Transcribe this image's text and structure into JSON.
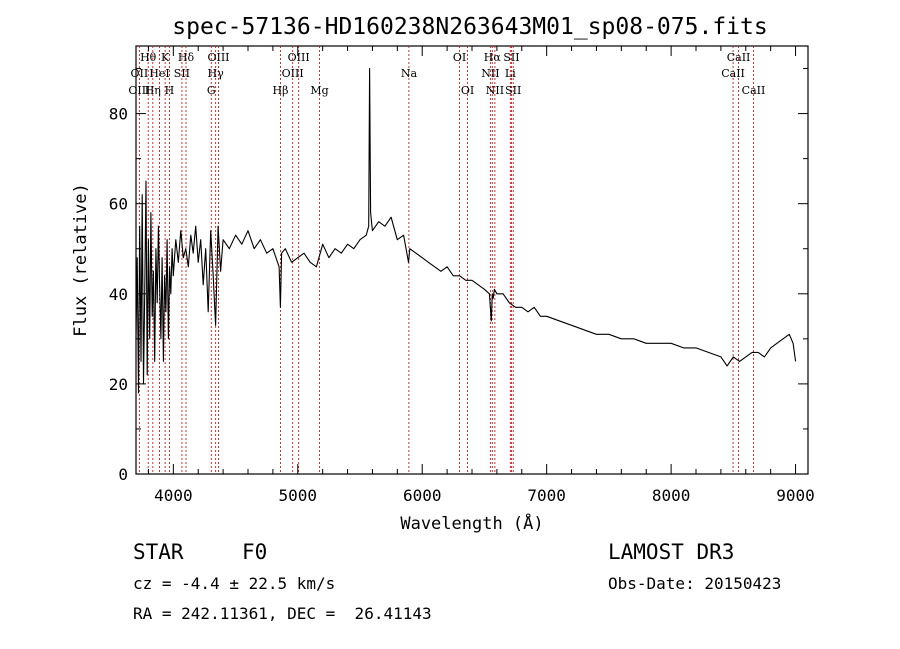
{
  "chart_data": {
    "type": "line",
    "title": "spec-57136-HD160238N263643M01_sp08-075.fits",
    "xlabel": "Wavelength (Å)",
    "ylabel": "Flux (relative)",
    "xlim": [
      3700,
      9100
    ],
    "ylim": [
      0,
      95
    ],
    "xticks": [
      4000,
      5000,
      6000,
      7000,
      8000,
      9000
    ],
    "yticks": [
      0,
      20,
      40,
      60,
      80
    ],
    "series": [
      {
        "name": "spectrum",
        "x": [
          3700,
          3710,
          3720,
          3730,
          3740,
          3750,
          3760,
          3770,
          3780,
          3790,
          3800,
          3810,
          3820,
          3830,
          3840,
          3850,
          3860,
          3870,
          3880,
          3890,
          3900,
          3910,
          3920,
          3930,
          3940,
          3950,
          3960,
          3970,
          3980,
          3990,
          4000,
          4020,
          4040,
          4060,
          4080,
          4100,
          4120,
          4140,
          4160,
          4180,
          4200,
          4220,
          4240,
          4260,
          4280,
          4300,
          4320,
          4340,
          4360,
          4380,
          4400,
          4450,
          4500,
          4550,
          4600,
          4650,
          4700,
          4750,
          4800,
          4850,
          4860,
          4870,
          4900,
          4950,
          5000,
          5050,
          5100,
          5150,
          5200,
          5250,
          5300,
          5350,
          5400,
          5450,
          5500,
          5550,
          5570,
          5577,
          5585,
          5600,
          5650,
          5700,
          5750,
          5800,
          5850,
          5890,
          5900,
          5950,
          6000,
          6050,
          6100,
          6150,
          6200,
          6250,
          6300,
          6350,
          6400,
          6450,
          6500,
          6540,
          6555,
          6563,
          6570,
          6580,
          6600,
          6650,
          6700,
          6750,
          6800,
          6850,
          6900,
          6950,
          7000,
          7100,
          7200,
          7300,
          7400,
          7500,
          7600,
          7700,
          7800,
          7900,
          8000,
          8100,
          8200,
          8300,
          8400,
          8450,
          8500,
          8550,
          8600,
          8650,
          8700,
          8750,
          8800,
          8850,
          8900,
          8950,
          8980,
          9000
        ],
        "values": [
          30,
          48,
          18,
          55,
          25,
          62,
          20,
          40,
          65,
          22,
          52,
          30,
          58,
          35,
          45,
          25,
          50,
          38,
          55,
          42,
          30,
          48,
          25,
          44,
          36,
          52,
          30,
          46,
          40,
          50,
          44,
          52,
          47,
          54,
          48,
          50,
          46,
          53,
          49,
          55,
          47,
          52,
          42,
          50,
          36,
          54,
          44,
          33,
          55,
          45,
          52,
          50,
          53,
          51,
          54,
          50,
          52,
          49,
          50,
          46,
          37,
          49,
          50,
          47,
          48,
          49,
          47,
          46,
          51,
          48,
          50,
          49,
          51,
          50,
          52,
          53,
          55,
          90,
          58,
          54,
          56,
          55,
          57,
          52,
          53,
          47,
          50,
          49,
          48,
          47,
          46,
          45,
          46,
          44,
          44,
          43,
          43,
          42,
          41,
          40,
          34,
          40,
          39,
          41,
          40,
          40,
          38,
          37,
          37,
          36,
          37,
          35,
          35,
          34,
          33,
          32,
          31,
          31,
          30,
          30,
          29,
          29,
          29,
          28,
          28,
          27,
          26,
          24,
          26,
          25,
          26,
          27,
          27,
          26,
          28,
          29,
          30,
          31,
          29,
          25
        ]
      }
    ],
    "spectral_lines": [
      {
        "label": "Hθ",
        "wavelength": 3798,
        "row": 1
      },
      {
        "label": "OII",
        "wavelength": 3727,
        "row": 2
      },
      {
        "label": "OIII",
        "wavelength": 3727,
        "row": 3
      },
      {
        "label": "K",
        "wavelength": 3934,
        "row": 1
      },
      {
        "label": "HeI",
        "wavelength": 3889,
        "row": 2
      },
      {
        "label": "Hη",
        "wavelength": 3835,
        "row": 3
      },
      {
        "label": "H",
        "wavelength": 3969,
        "row": 3
      },
      {
        "label": "Hδ",
        "wavelength": 4102,
        "row": 1
      },
      {
        "label": "SII",
        "wavelength": 4069,
        "row": 2
      },
      {
        "label": "OIII",
        "wavelength": 4363,
        "row": 1
      },
      {
        "label": "Hγ",
        "wavelength": 4340,
        "row": 2
      },
      {
        "label": "G",
        "wavelength": 4305,
        "row": 3
      },
      {
        "label": "Hβ",
        "wavelength": 4861,
        "row": 3
      },
      {
        "label": "OIII",
        "wavelength": 5007,
        "row": 1
      },
      {
        "label": "OIII",
        "wavelength": 4959,
        "row": 2
      },
      {
        "label": "Mg",
        "wavelength": 5175,
        "row": 3
      },
      {
        "label": "Na",
        "wavelength": 5893,
        "row": 2
      },
      {
        "label": "OI",
        "wavelength": 6300,
        "row": 1
      },
      {
        "label": "OI",
        "wavelength": 6364,
        "row": 3
      },
      {
        "label": "Hα",
        "wavelength": 6563,
        "row": 1
      },
      {
        "label": "SII",
        "wavelength": 6717,
        "row": 1
      },
      {
        "label": "NII",
        "wavelength": 6548,
        "row": 2
      },
      {
        "label": "Li",
        "wavelength": 6708,
        "row": 2
      },
      {
        "label": "NII",
        "wavelength": 6584,
        "row": 3
      },
      {
        "label": "SII",
        "wavelength": 6731,
        "row": 3
      },
      {
        "label": "CaII",
        "wavelength": 8542,
        "row": 1
      },
      {
        "label": "CaII",
        "wavelength": 8498,
        "row": 2
      },
      {
        "label": "CaII",
        "wavelength": 8662,
        "row": 3
      }
    ],
    "colors": {
      "spectrum": "#000000",
      "line_markers": "#b22222",
      "axes": "#000000"
    }
  },
  "info": {
    "object_class": "STAR",
    "subclass": "F0",
    "redshift": "cz = -4.4 ± 22.5 km/s",
    "coordinates": "RA = 242.11361, DEC =  26.41143",
    "survey": "LAMOST DR3",
    "obs_date": "Obs-Date: 20150423"
  }
}
